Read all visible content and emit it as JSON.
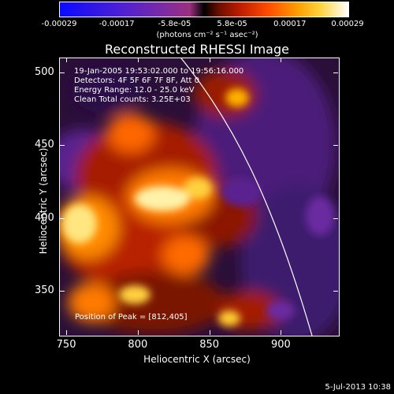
{
  "colorbar": {
    "ticks": [
      "-0.00029",
      "-0.00017",
      "-5.8e-05",
      "5.8e-05",
      "0.00017",
      "0.00029"
    ],
    "unit_label": "(photons cm⁻² s⁻¹ asec⁻²)"
  },
  "chart_data": {
    "type": "heatmap",
    "title": "Reconstructed RHESSI Image",
    "xlabel": "Heliocentric X (arcsec)",
    "ylabel": "Heliocentric Y (arcsec)",
    "xlim": [
      745,
      940
    ],
    "ylim": [
      320,
      510
    ],
    "xticks": [
      "750",
      "800",
      "850",
      "900"
    ],
    "yticks": [
      "350",
      "400",
      "450",
      "500"
    ],
    "color_range": [
      -0.00029,
      0.00029
    ],
    "annotations": [
      "19-Jan-2005 19:53:02.000 to 19:56:16.000",
      "Detectors: 4F 5F 6F 7F 8F, Att 0",
      "Energy Range: 12.0 - 25.0 keV",
      "Clean     Total counts: 3.25E+03"
    ],
    "peak_label": "Position of Peak = [812,405]",
    "peak": [
      812,
      405
    ]
  },
  "footer": {
    "date": "5-Jul-2013 10:38"
  }
}
